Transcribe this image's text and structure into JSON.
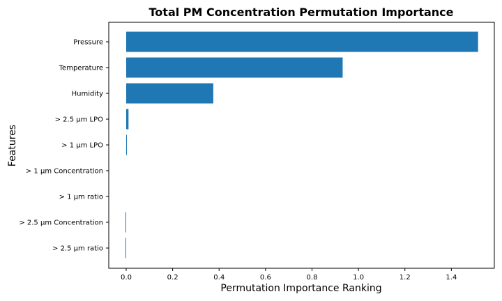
{
  "chart_data": {
    "type": "bar",
    "orientation": "horizontal",
    "title": "Total PM Concentration Permutation Importance",
    "xlabel": "Permutation Importance Ranking",
    "ylabel": "Features",
    "categories": [
      "Pressure",
      "Temperature",
      "Humidity",
      "> 2.5 µm LPO",
      "> 1 µm LPO",
      "> 1 µm Concentration",
      "> 1 µm ratio",
      "> 2.5 µm Concentration",
      "> 2.5 µm ratio"
    ],
    "values": [
      1.515,
      0.932,
      0.375,
      0.01,
      0.002,
      0.0,
      0.0,
      -0.003,
      -0.003
    ],
    "xlim": [
      -0.075,
      1.585
    ],
    "xticks": [
      0.0,
      0.2,
      0.4,
      0.6,
      0.8,
      1.0,
      1.2,
      1.4
    ],
    "xtick_labels": [
      "0.0",
      "0.2",
      "0.4",
      "0.6",
      "0.8",
      "1.0",
      "1.2",
      "1.4"
    ],
    "bar_color": "#1f77b4",
    "grid": false,
    "legend": "none"
  }
}
